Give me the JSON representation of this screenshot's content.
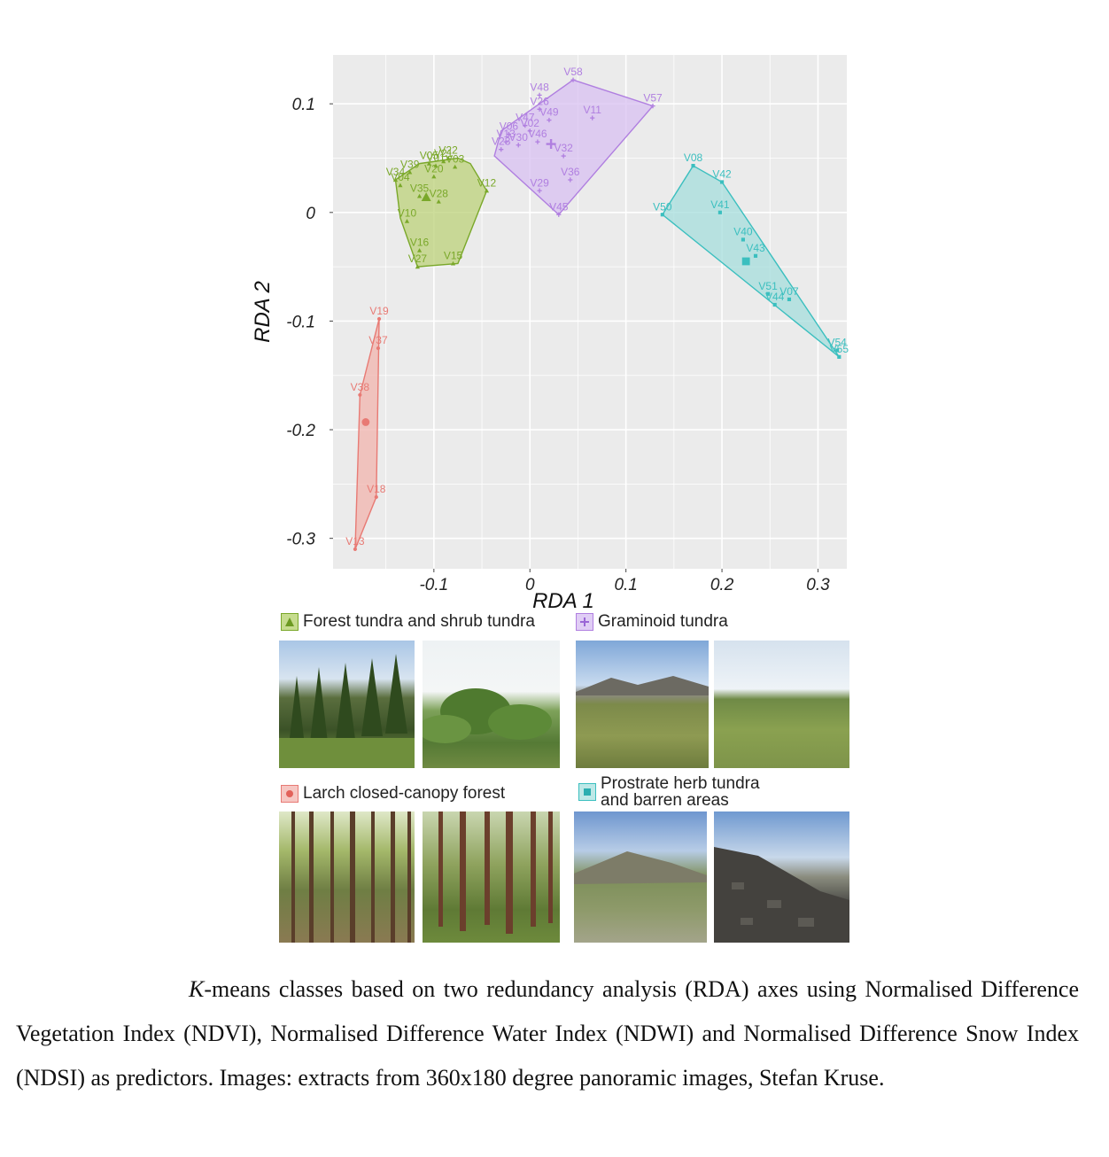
{
  "chart_data": {
    "type": "scatter",
    "xlabel": "RDA 1",
    "ylabel": "RDA 2",
    "xlim": [
      -0.205,
      0.33
    ],
    "ylim": [
      -0.328,
      0.145
    ],
    "xticks": [
      -0.1,
      0,
      0.1,
      0.2,
      0.3
    ],
    "xtick_labels": [
      "-0.1",
      "0",
      "0.1",
      "0.2",
      "0.3"
    ],
    "yticks": [
      0.1,
      0,
      -0.1,
      -0.2,
      -0.3
    ],
    "ytick_labels": [
      "0.1",
      "0",
      "-0.1",
      "-0.2",
      "-0.3"
    ],
    "grid": true,
    "legend_placement": "bottom",
    "series": [
      {
        "name": "Forest tundra and shrub tundra",
        "color": "#7aa82a",
        "fill": "#bcd27a",
        "marker": "triangle",
        "centroid": [
          -0.108,
          0.014
        ],
        "hull": [
          [
            -0.115,
            0.045
          ],
          [
            -0.075,
            0.05
          ],
          [
            -0.062,
            0.045
          ],
          [
            -0.045,
            0.02
          ],
          [
            -0.075,
            -0.047
          ],
          [
            -0.117,
            -0.05
          ],
          [
            -0.135,
            -0.005
          ],
          [
            -0.14,
            0.03
          ]
        ],
        "points": [
          {
            "label": "V34",
            "x": -0.14,
            "y": 0.03
          },
          {
            "label": "V39",
            "x": -0.125,
            "y": 0.037
          },
          {
            "label": "V04",
            "x": -0.135,
            "y": 0.025
          },
          {
            "label": "V05",
            "x": -0.105,
            "y": 0.045
          },
          {
            "label": "V01",
            "x": -0.098,
            "y": 0.043
          },
          {
            "label": "V21",
            "x": -0.09,
            "y": 0.047
          },
          {
            "label": "V22",
            "x": -0.085,
            "y": 0.05
          },
          {
            "label": "V03",
            "x": -0.078,
            "y": 0.042
          },
          {
            "label": "V20",
            "x": -0.1,
            "y": 0.033
          },
          {
            "label": "V12",
            "x": -0.045,
            "y": 0.02
          },
          {
            "label": "V35",
            "x": -0.115,
            "y": 0.015
          },
          {
            "label": "V28",
            "x": -0.095,
            "y": 0.01
          },
          {
            "label": "V10",
            "x": -0.128,
            "y": -0.008
          },
          {
            "label": "V16",
            "x": -0.115,
            "y": -0.035
          },
          {
            "label": "V27",
            "x": -0.117,
            "y": -0.05
          },
          {
            "label": "V15",
            "x": -0.08,
            "y": -0.047
          }
        ]
      },
      {
        "name": "Graminoid tundra",
        "color": "#b07fe0",
        "fill": "#d8c0f2",
        "marker": "plus",
        "centroid": [
          0.022,
          0.063
        ],
        "hull": [
          [
            0.045,
            0.122
          ],
          [
            0.128,
            0.098
          ],
          [
            0.03,
            -0.002
          ],
          [
            -0.037,
            0.052
          ],
          [
            -0.03,
            0.075
          ]
        ],
        "points": [
          {
            "label": "V58",
            "x": 0.045,
            "y": 0.122
          },
          {
            "label": "V48",
            "x": 0.01,
            "y": 0.108
          },
          {
            "label": "V57",
            "x": 0.128,
            "y": 0.098
          },
          {
            "label": "V26",
            "x": 0.01,
            "y": 0.095
          },
          {
            "label": "V49",
            "x": 0.02,
            "y": 0.085
          },
          {
            "label": "V11",
            "x": 0.065,
            "y": 0.087
          },
          {
            "label": "V47",
            "x": -0.005,
            "y": 0.08
          },
          {
            "label": "V02",
            "x": 0.0,
            "y": 0.075
          },
          {
            "label": "V06",
            "x": -0.022,
            "y": 0.072
          },
          {
            "label": "V13",
            "x": -0.025,
            "y": 0.065
          },
          {
            "label": "V30",
            "x": -0.012,
            "y": 0.062
          },
          {
            "label": "V46",
            "x": 0.008,
            "y": 0.065
          },
          {
            "label": "V23",
            "x": -0.03,
            "y": 0.058
          },
          {
            "label": "V32",
            "x": 0.035,
            "y": 0.052
          },
          {
            "label": "V36",
            "x": 0.042,
            "y": 0.03
          },
          {
            "label": "V29",
            "x": 0.01,
            "y": 0.02
          },
          {
            "label": "V45",
            "x": 0.03,
            "y": -0.002
          }
        ]
      },
      {
        "name": "Larch closed-canopy forest",
        "color": "#e87a74",
        "fill": "#f2b4ae",
        "marker": "circle",
        "centroid": [
          -0.171,
          -0.193
        ],
        "hull": [
          [
            -0.157,
            -0.098
          ],
          [
            -0.16,
            -0.262
          ],
          [
            -0.182,
            -0.31
          ],
          [
            -0.177,
            -0.168
          ]
        ],
        "points": [
          {
            "label": "V19",
            "x": -0.157,
            "y": -0.098
          },
          {
            "label": "V37",
            "x": -0.158,
            "y": -0.125
          },
          {
            "label": "V38",
            "x": -0.177,
            "y": -0.168
          },
          {
            "label": "V18",
            "x": -0.16,
            "y": -0.262
          },
          {
            "label": "V13",
            "x": -0.182,
            "y": -0.31
          }
        ]
      },
      {
        "name": "Prostrate herb tundra and barren areas",
        "color": "#3bbfbf",
        "fill": "#a6dddc",
        "marker": "square",
        "centroid": [
          0.225,
          -0.045
        ],
        "hull": [
          [
            0.17,
            0.043
          ],
          [
            0.2,
            0.028
          ],
          [
            0.322,
            -0.133
          ],
          [
            0.138,
            -0.002
          ]
        ],
        "points": [
          {
            "label": "V08",
            "x": 0.17,
            "y": 0.043
          },
          {
            "label": "V42",
            "x": 0.2,
            "y": 0.028
          },
          {
            "label": "V41",
            "x": 0.198,
            "y": 0.0
          },
          {
            "label": "V50",
            "x": 0.138,
            "y": -0.002
          },
          {
            "label": "V40",
            "x": 0.222,
            "y": -0.025
          },
          {
            "label": "V43",
            "x": 0.235,
            "y": -0.04
          },
          {
            "label": "V51",
            "x": 0.248,
            "y": -0.075
          },
          {
            "label": "V44",
            "x": 0.255,
            "y": -0.085
          },
          {
            "label": "V07",
            "x": 0.27,
            "y": -0.08
          },
          {
            "label": "V54",
            "x": 0.32,
            "y": -0.127
          },
          {
            "label": "V55",
            "x": 0.322,
            "y": -0.133
          }
        ]
      }
    ]
  },
  "legend": {
    "forest_tundra": "Forest tundra and shrub tundra",
    "graminoid": "Graminoid tundra",
    "larch": "Larch closed-canopy forest",
    "prostrate_line1": "Prostrate herb tundra",
    "prostrate_line2": "and barren areas"
  },
  "caption": {
    "lead_italic": "K",
    "text": "-means classes based on two redundancy analysis (RDA) axes using Normalised Difference Vegetation Index (NDVI), Normalised Difference Water Index (NDWI) and Normalised Difference Snow Index (NDSI) as predictors. Images: extracts from 360x180 degree panoramic images, Stefan Kruse."
  }
}
